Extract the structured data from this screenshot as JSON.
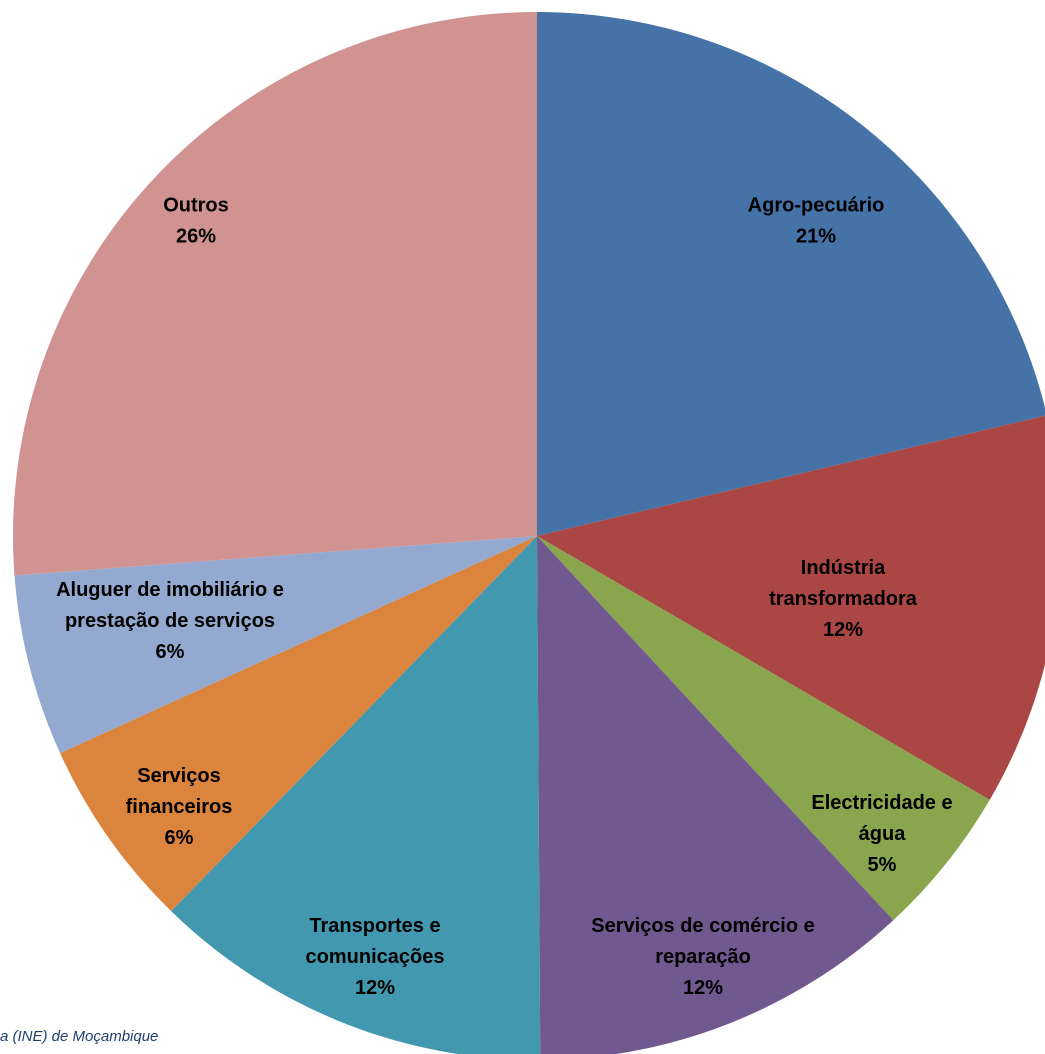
{
  "chart_data": {
    "type": "pie",
    "start_angle_deg": 0,
    "direction": "clockwise",
    "slices": [
      {
        "name": "Agro-pecuário",
        "label_lines": [
          "Agro-pecuário"
        ],
        "pct_label": "21%",
        "value": 21.3,
        "color": "#4572a7"
      },
      {
        "name": "Indústria transformadora",
        "label_lines": [
          "Indústria",
          "transformadora"
        ],
        "pct_label": "12%",
        "value": 12.1,
        "color": "#aa4643"
      },
      {
        "name": "Electricidade e água",
        "label_lines": [
          "Electricidade e",
          "água"
        ],
        "pct_label": "5%",
        "value": 4.7,
        "color": "#89a54e"
      },
      {
        "name": "Serviços de comércio e reparação",
        "label_lines": [
          "Serviços de comércio e",
          "reparação"
        ],
        "pct_label": "12%",
        "value": 11.8,
        "color": "#71588f"
      },
      {
        "name": "Transportes e comunicações",
        "label_lines": [
          "Transportes e",
          "comunicações"
        ],
        "pct_label": "12%",
        "value": 12.4,
        "color": "#4198af"
      },
      {
        "name": "Serviços financeiros",
        "label_lines": [
          "Serviços",
          "financeiros"
        ],
        "pct_label": "6%",
        "value": 5.9,
        "color": "#db843d"
      },
      {
        "name": "Aluguer de imobiliário e prestação de serviços",
        "label_lines": [
          "Aluguer de imobiliário e",
          "prestação de serviços"
        ],
        "pct_label": "6%",
        "value": 5.6,
        "color": "#93a9cf"
      },
      {
        "name": "Outros",
        "label_lines": [
          "Outros"
        ],
        "pct_label": "26%",
        "value": 26.2,
        "color": "#d19392"
      }
    ]
  },
  "source_note": "a (INE) de Moçambique"
}
